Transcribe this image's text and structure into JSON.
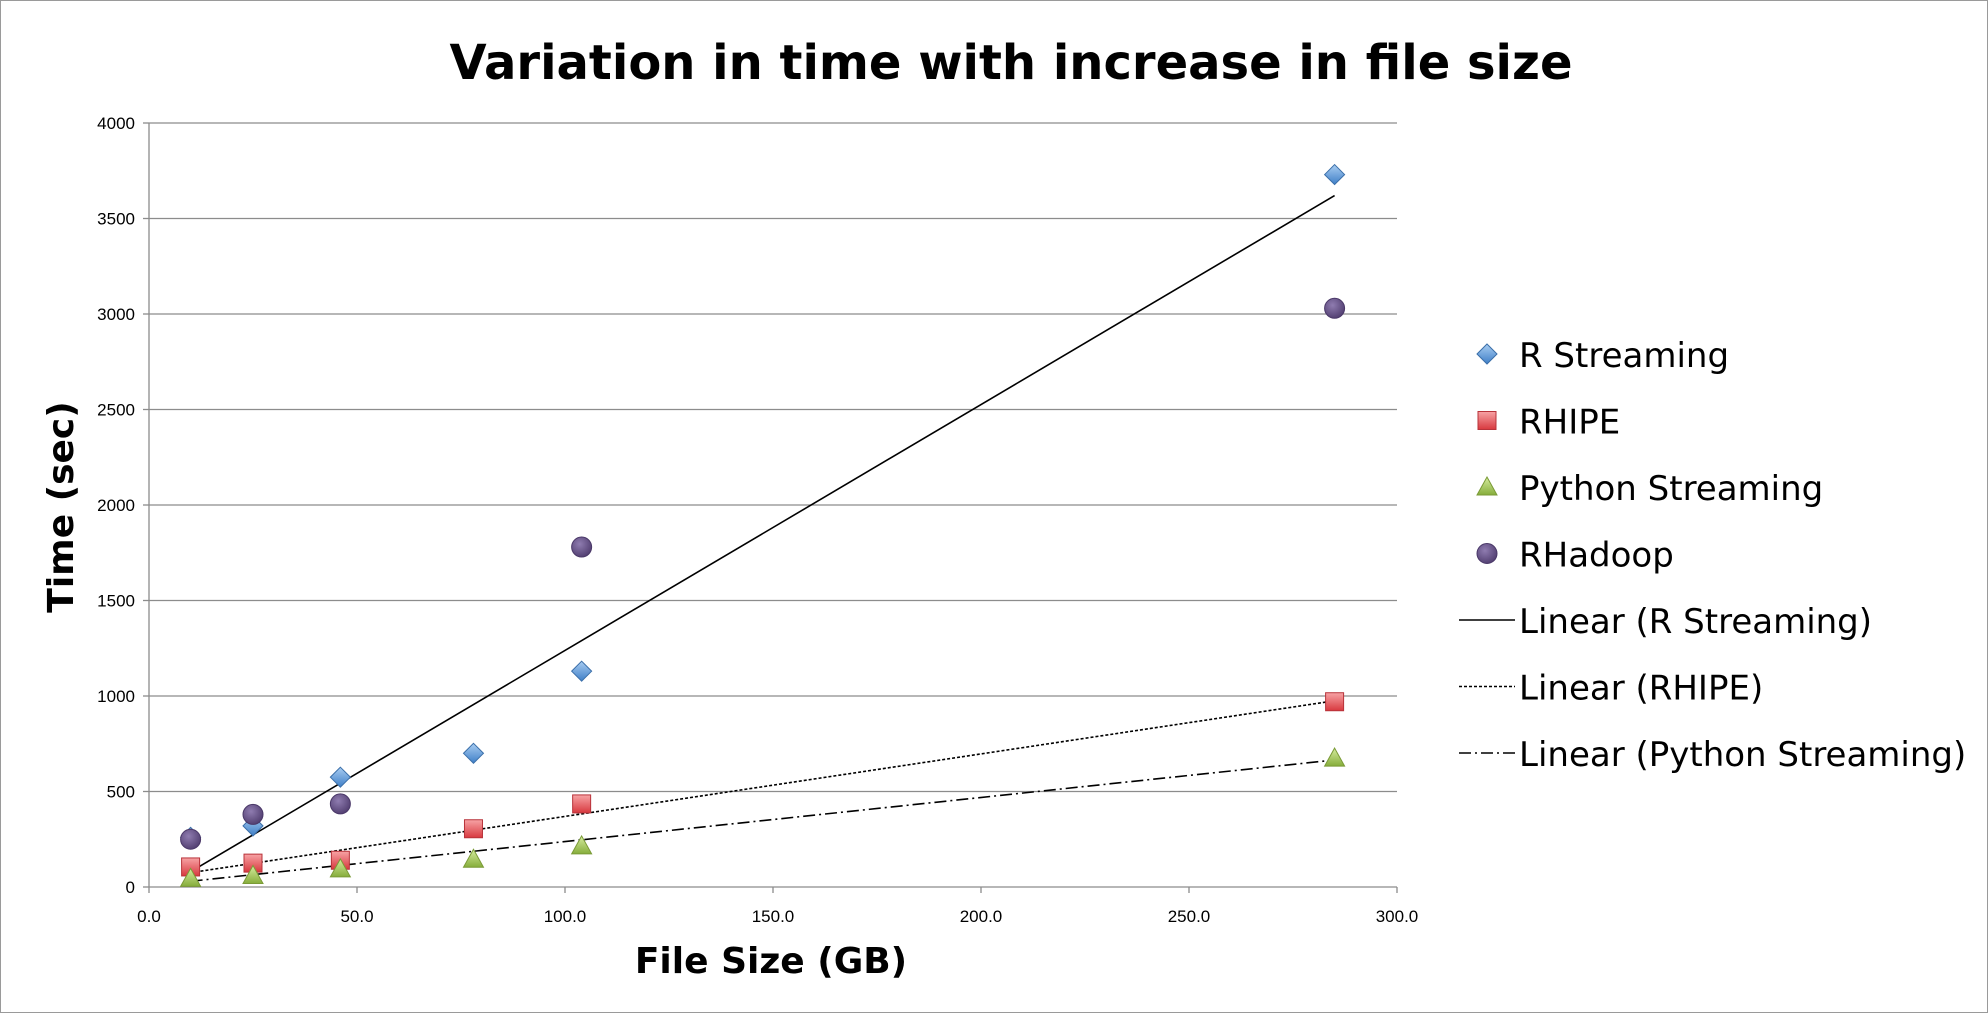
{
  "chart_data": {
    "type": "scatter",
    "title": "Variation in time with increase in file size",
    "xlabel": "File Size (GB)",
    "ylabel": "Time (sec)",
    "xlim": [
      0,
      300
    ],
    "ylim": [
      0,
      4000
    ],
    "x_ticks": [
      "0.0",
      "50.0",
      "100.0",
      "150.0",
      "200.0",
      "250.0",
      "300.0"
    ],
    "x_tick_values": [
      0,
      50,
      100,
      150,
      200,
      250,
      300
    ],
    "y_ticks": [
      "0",
      "500",
      "1000",
      "1500",
      "2000",
      "2500",
      "3000",
      "3500",
      "4000"
    ],
    "y_tick_values": [
      0,
      500,
      1000,
      1500,
      2000,
      2500,
      3000,
      3500,
      4000
    ],
    "horizontal_grid": true,
    "legend_position": "right",
    "series": [
      {
        "name": "R Streaming",
        "marker": "diamond",
        "color": "#5b9bd5",
        "points": [
          [
            10,
            260
          ],
          [
            25,
            320
          ],
          [
            46,
            575
          ],
          [
            78,
            700
          ],
          [
            104,
            1130
          ],
          [
            285,
            3730
          ]
        ]
      },
      {
        "name": "RHIPE",
        "marker": "square",
        "color": "#e8555b",
        "points": [
          [
            10,
            105
          ],
          [
            25,
            125
          ],
          [
            46,
            140
          ],
          [
            78,
            305
          ],
          [
            104,
            435
          ],
          [
            285,
            970
          ]
        ]
      },
      {
        "name": "Python Streaming",
        "marker": "triangle",
        "color": "#9bbb59",
        "points": [
          [
            10,
            45
          ],
          [
            25,
            60
          ],
          [
            46,
            95
          ],
          [
            78,
            145
          ],
          [
            104,
            215
          ],
          [
            285,
            675
          ]
        ]
      },
      {
        "name": "RHadoop",
        "marker": "circle",
        "color": "#6a5488",
        "points": [
          [
            10,
            250
          ],
          [
            25,
            380
          ],
          [
            46,
            435
          ],
          [
            104,
            1780
          ],
          [
            285,
            3030
          ]
        ]
      }
    ],
    "trendlines": [
      {
        "name": "Linear (R Streaming)",
        "style": "solid",
        "from": [
          10,
          80
        ],
        "to": [
          285,
          3620
        ]
      },
      {
        "name": "Linear (RHIPE)",
        "style": "dotted",
        "from": [
          10,
          75
        ],
        "to": [
          285,
          975
        ]
      },
      {
        "name": "Linear (Python Streaming)",
        "style": "dashdot",
        "from": [
          10,
          30
        ],
        "to": [
          285,
          665
        ]
      }
    ]
  }
}
